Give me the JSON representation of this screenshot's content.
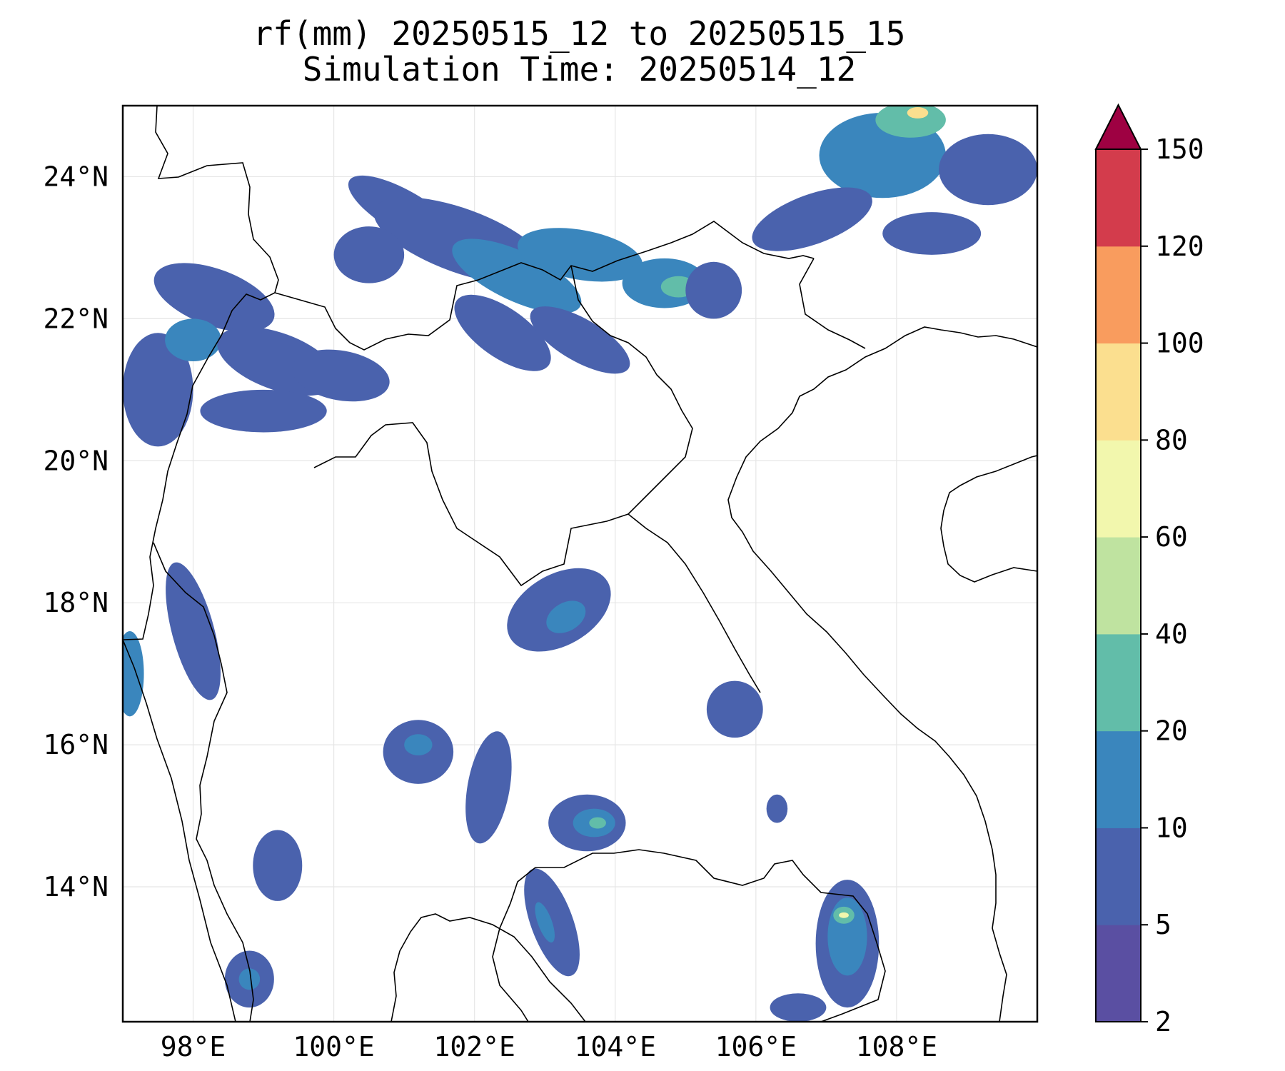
{
  "title": {
    "line1": "rf(mm) 20250515_12 to 20250515_15",
    "line2": "Simulation Time: 20250514_12"
  },
  "map_data": {
    "type": "filled-contour-map",
    "variable": "rf(mm)",
    "extent": {
      "lon": [
        97,
        110
      ],
      "lat": [
        12.1,
        25.0
      ]
    },
    "grid": true,
    "lon_ticks": [
      {
        "value": 98,
        "label": "98°E"
      },
      {
        "value": 100,
        "label": "100°E"
      },
      {
        "value": 102,
        "label": "102°E"
      },
      {
        "value": 104,
        "label": "104°E"
      },
      {
        "value": 106,
        "label": "106°E"
      },
      {
        "value": 108,
        "label": "108°E"
      }
    ],
    "lat_ticks": [
      {
        "value": 14,
        "label": "14°N"
      },
      {
        "value": 16,
        "label": "16°N"
      },
      {
        "value": 18,
        "label": "18°N"
      },
      {
        "value": 20,
        "label": "20°N"
      },
      {
        "value": 22,
        "label": "22°N"
      },
      {
        "value": 24,
        "label": "24°N"
      }
    ],
    "rain_areas": [
      {
        "lon": 101.0,
        "lat": 23.5,
        "rx": 0.9,
        "ry": 0.3,
        "rot": 30,
        "level": 1
      },
      {
        "lon": 101.8,
        "lat": 23.1,
        "rx": 1.3,
        "ry": 0.45,
        "rot": 20,
        "level": 1
      },
      {
        "lon": 102.6,
        "lat": 22.6,
        "rx": 1.0,
        "ry": 0.35,
        "rot": 25,
        "level": 2
      },
      {
        "lon": 103.5,
        "lat": 22.9,
        "rx": 0.9,
        "ry": 0.35,
        "rot": 10,
        "level": 2
      },
      {
        "lon": 104.7,
        "lat": 22.5,
        "rx": 0.6,
        "ry": 0.35,
        "rot": 0,
        "level": 2
      },
      {
        "lon": 104.9,
        "lat": 22.45,
        "rx": 0.25,
        "ry": 0.15,
        "rot": 0,
        "level": 3
      },
      {
        "lon": 105.4,
        "lat": 22.4,
        "rx": 0.4,
        "ry": 0.4,
        "rot": 0,
        "level": 1
      },
      {
        "lon": 102.4,
        "lat": 21.8,
        "rx": 0.8,
        "ry": 0.35,
        "rot": 35,
        "level": 1
      },
      {
        "lon": 103.5,
        "lat": 21.7,
        "rx": 0.8,
        "ry": 0.3,
        "rot": 30,
        "level": 1
      },
      {
        "lon": 100.5,
        "lat": 22.9,
        "rx": 0.5,
        "ry": 0.4,
        "rot": 0,
        "level": 1
      },
      {
        "lon": 107.8,
        "lat": 24.3,
        "rx": 0.9,
        "ry": 0.6,
        "rot": 0,
        "level": 2
      },
      {
        "lon": 108.2,
        "lat": 24.8,
        "rx": 0.5,
        "ry": 0.25,
        "rot": 0,
        "level": 3
      },
      {
        "lon": 108.3,
        "lat": 24.9,
        "rx": 0.15,
        "ry": 0.08,
        "rot": 0,
        "level": 6
      },
      {
        "lon": 109.3,
        "lat": 24.1,
        "rx": 0.7,
        "ry": 0.5,
        "rot": 0,
        "level": 1
      },
      {
        "lon": 106.8,
        "lat": 23.4,
        "rx": 0.9,
        "ry": 0.35,
        "rot": -20,
        "level": 1
      },
      {
        "lon": 108.5,
        "lat": 23.2,
        "rx": 0.7,
        "ry": 0.3,
        "rot": 0,
        "level": 1
      },
      {
        "lon": 98.3,
        "lat": 22.3,
        "rx": 0.9,
        "ry": 0.4,
        "rot": 20,
        "level": 1
      },
      {
        "lon": 97.5,
        "lat": 21.0,
        "rx": 0.5,
        "ry": 0.8,
        "rot": 0,
        "level": 1
      },
      {
        "lon": 98.0,
        "lat": 21.7,
        "rx": 0.4,
        "ry": 0.3,
        "rot": 0,
        "level": 2
      },
      {
        "lon": 99.2,
        "lat": 21.4,
        "rx": 0.9,
        "ry": 0.4,
        "rot": 20,
        "level": 1
      },
      {
        "lon": 100.1,
        "lat": 21.2,
        "rx": 0.7,
        "ry": 0.35,
        "rot": 10,
        "level": 1
      },
      {
        "lon": 99.0,
        "lat": 20.7,
        "rx": 0.9,
        "ry": 0.3,
        "rot": 0,
        "level": 1
      },
      {
        "lon": 98.0,
        "lat": 17.6,
        "rx": 0.3,
        "ry": 1.0,
        "rot": -15,
        "level": 1
      },
      {
        "lon": 97.1,
        "lat": 17.0,
        "rx": 0.2,
        "ry": 0.6,
        "rot": 0,
        "level": 2
      },
      {
        "lon": 103.2,
        "lat": 17.9,
        "rx": 0.8,
        "ry": 0.5,
        "rot": -30,
        "level": 1
      },
      {
        "lon": 103.3,
        "lat": 17.8,
        "rx": 0.3,
        "ry": 0.2,
        "rot": -30,
        "level": 2
      },
      {
        "lon": 101.2,
        "lat": 15.9,
        "rx": 0.5,
        "ry": 0.45,
        "rot": 0,
        "level": 1
      },
      {
        "lon": 101.2,
        "lat": 16.0,
        "rx": 0.2,
        "ry": 0.15,
        "rot": 0,
        "level": 2
      },
      {
        "lon": 102.2,
        "lat": 15.4,
        "rx": 0.3,
        "ry": 0.8,
        "rot": 10,
        "level": 1
      },
      {
        "lon": 103.6,
        "lat": 14.9,
        "rx": 0.55,
        "ry": 0.4,
        "rot": 0,
        "level": 1
      },
      {
        "lon": 103.7,
        "lat": 14.9,
        "rx": 0.3,
        "ry": 0.2,
        "rot": 0,
        "level": 2
      },
      {
        "lon": 103.75,
        "lat": 14.9,
        "rx": 0.12,
        "ry": 0.08,
        "rot": 0,
        "level": 3
      },
      {
        "lon": 103.1,
        "lat": 13.5,
        "rx": 0.3,
        "ry": 0.8,
        "rot": -20,
        "level": 1
      },
      {
        "lon": 103.0,
        "lat": 13.5,
        "rx": 0.1,
        "ry": 0.3,
        "rot": -20,
        "level": 2
      },
      {
        "lon": 105.7,
        "lat": 16.5,
        "rx": 0.4,
        "ry": 0.4,
        "rot": 0,
        "level": 1
      },
      {
        "lon": 106.3,
        "lat": 15.1,
        "rx": 0.15,
        "ry": 0.2,
        "rot": 0,
        "level": 1
      },
      {
        "lon": 99.2,
        "lat": 14.3,
        "rx": 0.35,
        "ry": 0.5,
        "rot": 0,
        "level": 1
      },
      {
        "lon": 98.8,
        "lat": 12.7,
        "rx": 0.35,
        "ry": 0.4,
        "rot": 0,
        "level": 1
      },
      {
        "lon": 98.8,
        "lat": 12.7,
        "rx": 0.15,
        "ry": 0.15,
        "rot": 0,
        "level": 2
      },
      {
        "lon": 107.3,
        "lat": 13.2,
        "rx": 0.45,
        "ry": 0.9,
        "rot": 0,
        "level": 1
      },
      {
        "lon": 107.3,
        "lat": 13.3,
        "rx": 0.28,
        "ry": 0.55,
        "rot": 0,
        "level": 2
      },
      {
        "lon": 107.25,
        "lat": 13.6,
        "rx": 0.15,
        "ry": 0.12,
        "rot": 0,
        "level": 3
      },
      {
        "lon": 107.25,
        "lat": 13.6,
        "rx": 0.07,
        "ry": 0.04,
        "rot": 0,
        "level": 5
      },
      {
        "lon": 106.6,
        "lat": 12.3,
        "rx": 0.4,
        "ry": 0.2,
        "rot": 0,
        "level": 1
      }
    ]
  },
  "colorbar": {
    "levels": [
      "2",
      "5",
      "10",
      "20",
      "40",
      "60",
      "80",
      "100",
      "120",
      "150"
    ],
    "colors": [
      "#5a4fa2",
      "#4a62ad",
      "#3a86bd",
      "#62bda9",
      "#bfe3a0",
      "#f2f7ad",
      "#fbdf8f",
      "#f99c5e",
      "#d33c4c"
    ],
    "extend_color": "#9e0142",
    "extend": "max"
  }
}
